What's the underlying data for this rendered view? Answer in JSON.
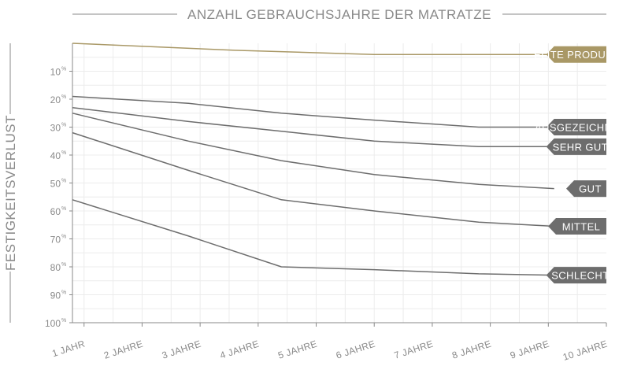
{
  "chart_data": {
    "type": "line",
    "title": "ANZAHL GEBRAUCHSJAHRE DER MATRATZE",
    "ylabel": "FESTIGKEITSVERLUST",
    "xlabel": "",
    "x_ticks": [
      "1 JAHR",
      "2 JAHRE",
      "3 JAHRE",
      "4 JAHRE",
      "5 JAHRE",
      "6 JAHRE",
      "7 JAHRE",
      "8 JAHRE",
      "9 JAHRE",
      "10 JAHRE"
    ],
    "y_ticks": [
      10,
      20,
      30,
      40,
      50,
      60,
      70,
      80,
      90,
      100
    ],
    "y_unit": "%",
    "xlim": [
      0.8,
      10
    ],
    "ylim": [
      0,
      100
    ],
    "y_inverted": true,
    "grid": true,
    "series": [
      {
        "name": "ELITE PRODUKTE",
        "color": "#a99866",
        "x": [
          0.8,
          3.6,
          6.0,
          9.1
        ],
        "y": [
          0,
          2.5,
          4,
          4
        ]
      },
      {
        "name": "AUSGEZEICHNET",
        "color": "#6d6d6d",
        "x": [
          0.8,
          2.8,
          4.4,
          6.0,
          7.8,
          9.1
        ],
        "y": [
          19,
          21.5,
          25,
          27.5,
          30,
          30
        ]
      },
      {
        "name": "SEHR GUT",
        "color": "#6d6d6d",
        "x": [
          0.8,
          2.8,
          4.4,
          6.0,
          7.8,
          9.1
        ],
        "y": [
          23,
          28,
          31.5,
          35,
          37,
          37
        ]
      },
      {
        "name": "GUT",
        "color": "#6d6d6d",
        "x": [
          0.8,
          2.8,
          4.4,
          6.0,
          7.8,
          9.1
        ],
        "y": [
          25,
          35,
          42,
          47,
          50.5,
          52
        ]
      },
      {
        "name": "MITTEL",
        "color": "#6d6d6d",
        "x": [
          0.8,
          2.8,
          4.4,
          6.0,
          7.8,
          9.1
        ],
        "y": [
          32,
          45.5,
          56,
          60,
          64,
          65.5
        ]
      },
      {
        "name": "SCHLECHT",
        "color": "#6d6d6d",
        "x": [
          0.8,
          2.8,
          4.4,
          6.0,
          7.8,
          9.1
        ],
        "y": [
          56,
          69,
          80,
          81,
          82.5,
          83
        ]
      }
    ]
  }
}
